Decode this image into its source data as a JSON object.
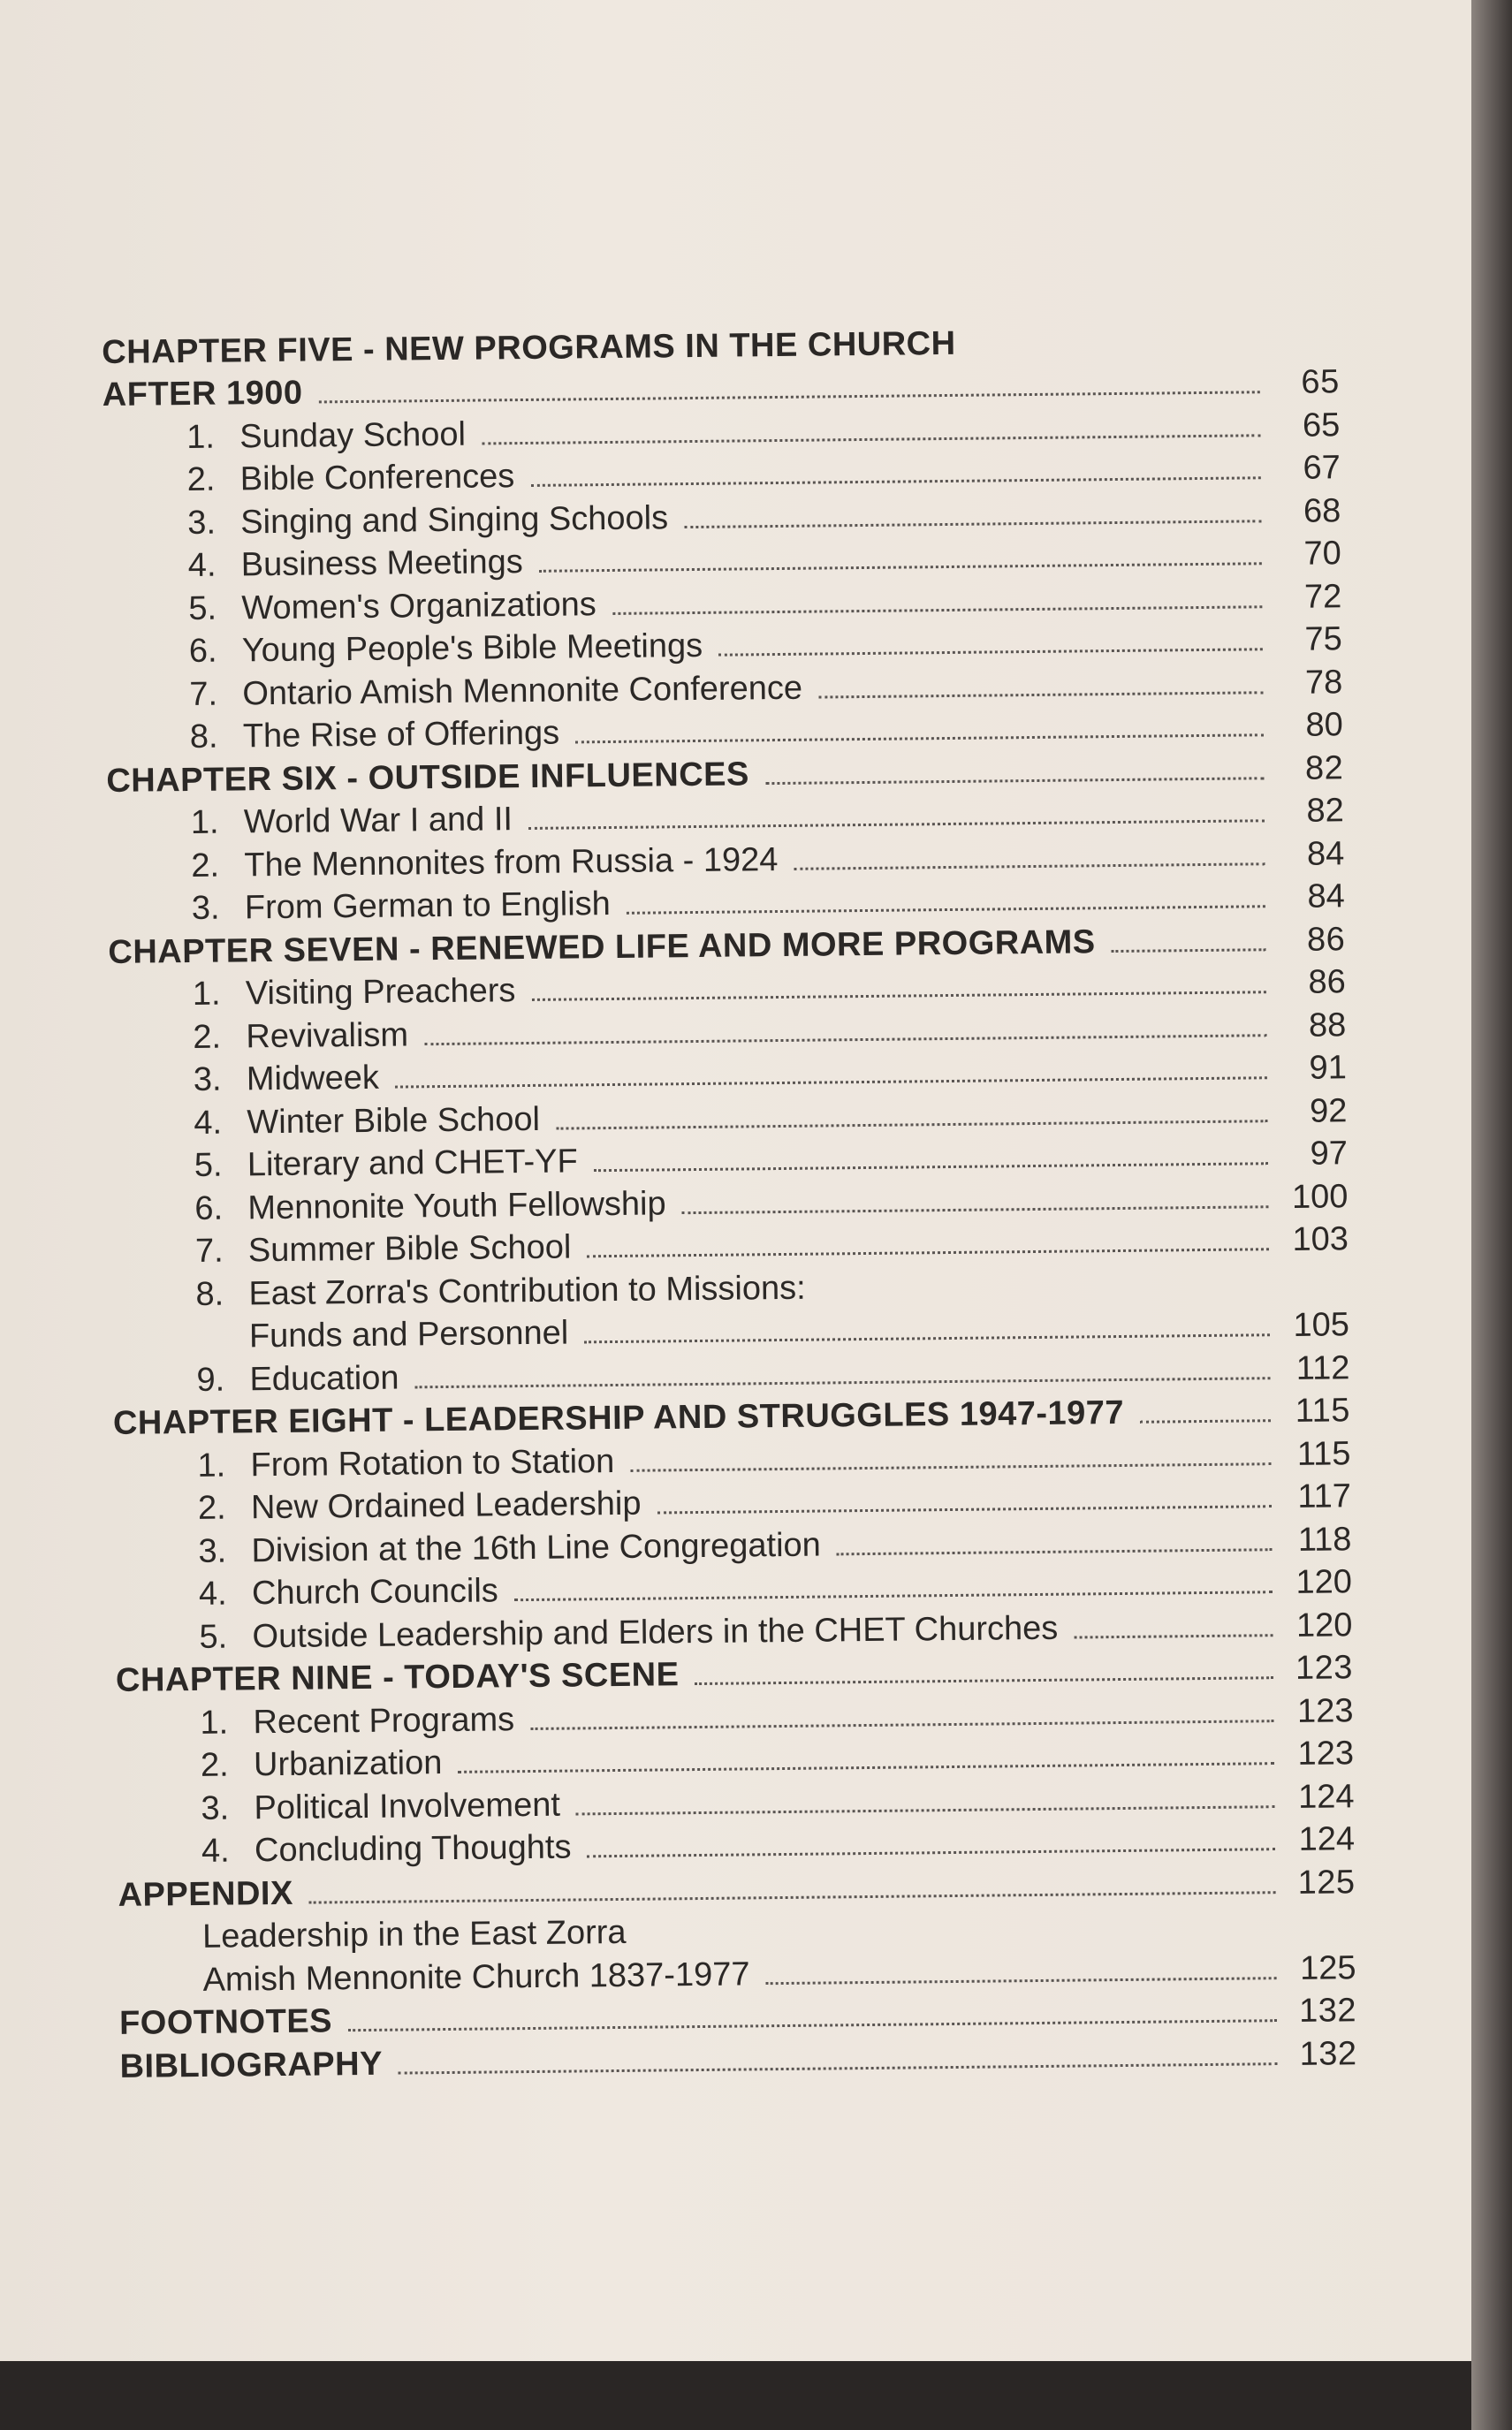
{
  "colors": {
    "paper": "#ece5dc",
    "ink": "#2b2826",
    "edge": "#2a2625"
  },
  "entries": [
    {
      "kind": "chapter",
      "title": "CHAPTER FIVE - NEW PROGRAMS IN THE CHURCH",
      "page": ""
    },
    {
      "kind": "chapter",
      "title": "AFTER 1900",
      "page": "65"
    },
    {
      "kind": "item",
      "num": "1.",
      "title": "Sunday School",
      "page": "65"
    },
    {
      "kind": "item",
      "num": "2.",
      "title": "Bible Conferences",
      "page": "67"
    },
    {
      "kind": "item",
      "num": "3.",
      "title": "Singing and Singing Schools",
      "page": "68"
    },
    {
      "kind": "item",
      "num": "4.",
      "title": "Business Meetings",
      "page": "70"
    },
    {
      "kind": "item",
      "num": "5.",
      "title": "Women's Organizations",
      "page": "72"
    },
    {
      "kind": "item",
      "num": "6.",
      "title": "Young People's Bible Meetings",
      "page": "75"
    },
    {
      "kind": "item",
      "num": "7.",
      "title": "Ontario Amish Mennonite Conference",
      "page": "78"
    },
    {
      "kind": "item",
      "num": "8.",
      "title": "The Rise of Offerings",
      "page": "80"
    },
    {
      "kind": "chapter",
      "title": "CHAPTER SIX - OUTSIDE INFLUENCES",
      "page": "82"
    },
    {
      "kind": "item",
      "num": "1.",
      "title": "World War I and II",
      "page": "82"
    },
    {
      "kind": "item",
      "num": "2.",
      "title": "The Mennonites from Russia - 1924",
      "page": "84"
    },
    {
      "kind": "item",
      "num": "3.",
      "title": "From German to English",
      "page": "84"
    },
    {
      "kind": "chapter",
      "title": "CHAPTER SEVEN - RENEWED LIFE AND MORE PROGRAMS",
      "page": "86"
    },
    {
      "kind": "item",
      "num": "1.",
      "title": "Visiting Preachers",
      "page": "86"
    },
    {
      "kind": "item",
      "num": "2.",
      "title": "Revivalism",
      "page": "88"
    },
    {
      "kind": "item",
      "num": "3.",
      "title": "Midweek",
      "page": "91"
    },
    {
      "kind": "item",
      "num": "4.",
      "title": "Winter Bible School",
      "page": "92"
    },
    {
      "kind": "item",
      "num": "5.",
      "title": "Literary and CHET-YF",
      "page": "97"
    },
    {
      "kind": "item",
      "num": "6.",
      "title": "Mennonite Youth Fellowship",
      "page": "100"
    },
    {
      "kind": "item",
      "num": "7.",
      "title": "Summer Bible School",
      "page": "103"
    },
    {
      "kind": "item",
      "num": "8.",
      "title": "East Zorra's Contribution to Missions:",
      "page": ""
    },
    {
      "kind": "sub",
      "title": "Funds and Personnel",
      "page": "105"
    },
    {
      "kind": "item",
      "num": "9.",
      "title": "Education",
      "page": "112"
    },
    {
      "kind": "chapter",
      "title": "CHAPTER EIGHT - LEADERSHIP AND STRUGGLES 1947-1977",
      "page": "115"
    },
    {
      "kind": "item",
      "num": "1.",
      "title": "From Rotation to Station",
      "page": "115"
    },
    {
      "kind": "item",
      "num": "2.",
      "title": "New Ordained Leadership",
      "page": "117"
    },
    {
      "kind": "item",
      "num": "3.",
      "title": "Division at the 16th Line Congregation",
      "page": "118"
    },
    {
      "kind": "item",
      "num": "4.",
      "title": "Church Councils",
      "page": "120"
    },
    {
      "kind": "item",
      "num": "5.",
      "title": "Outside Leadership and Elders in the CHET Churches",
      "page": "120"
    },
    {
      "kind": "chapter",
      "title": "CHAPTER NINE - TODAY'S SCENE",
      "page": "123"
    },
    {
      "kind": "item",
      "num": "1.",
      "title": "Recent Programs",
      "page": "123"
    },
    {
      "kind": "item",
      "num": "2.",
      "title": "Urbanization",
      "page": "123"
    },
    {
      "kind": "item",
      "num": "3.",
      "title": "Political Involvement",
      "page": "124"
    },
    {
      "kind": "item",
      "num": "4.",
      "title": "Concluding Thoughts",
      "page": "124"
    },
    {
      "kind": "chapter",
      "title": "APPENDIX",
      "page": "125"
    },
    {
      "kind": "subplain",
      "title": "Leadership in the East Zorra",
      "page": ""
    },
    {
      "kind": "subplain",
      "title": "Amish Mennonite Church 1837-1977",
      "page": "125"
    },
    {
      "kind": "chapter",
      "title": "FOOTNOTES",
      "page": "132"
    },
    {
      "kind": "chapter",
      "title": "BIBLIOGRAPHY",
      "page": "132"
    }
  ]
}
